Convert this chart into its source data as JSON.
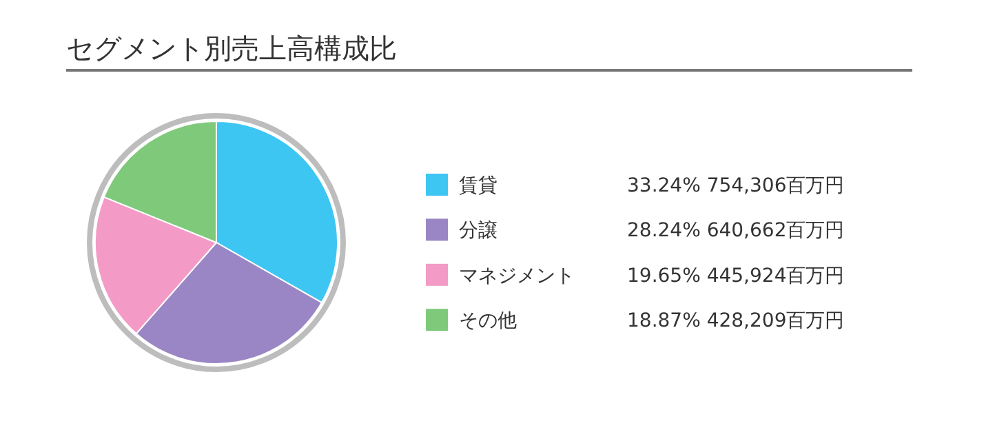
{
  "chart_data": {
    "type": "pie",
    "title": "セグメント別売上高構成比",
    "categories": [
      "賃貸",
      "分譲",
      "マネジメント",
      "その他"
    ],
    "values": [
      33.24,
      28.24,
      19.65,
      18.87
    ],
    "colors": [
      "#3ec6f2",
      "#9a86c4",
      "#f39bc6",
      "#7fc97a"
    ],
    "value_labels": [
      "33.24% 754,306百万円",
      "28.24% 640,662百万円",
      "19.65% 445,924百万円",
      "18.87% 428,209百万円"
    ],
    "legend": "right"
  }
}
